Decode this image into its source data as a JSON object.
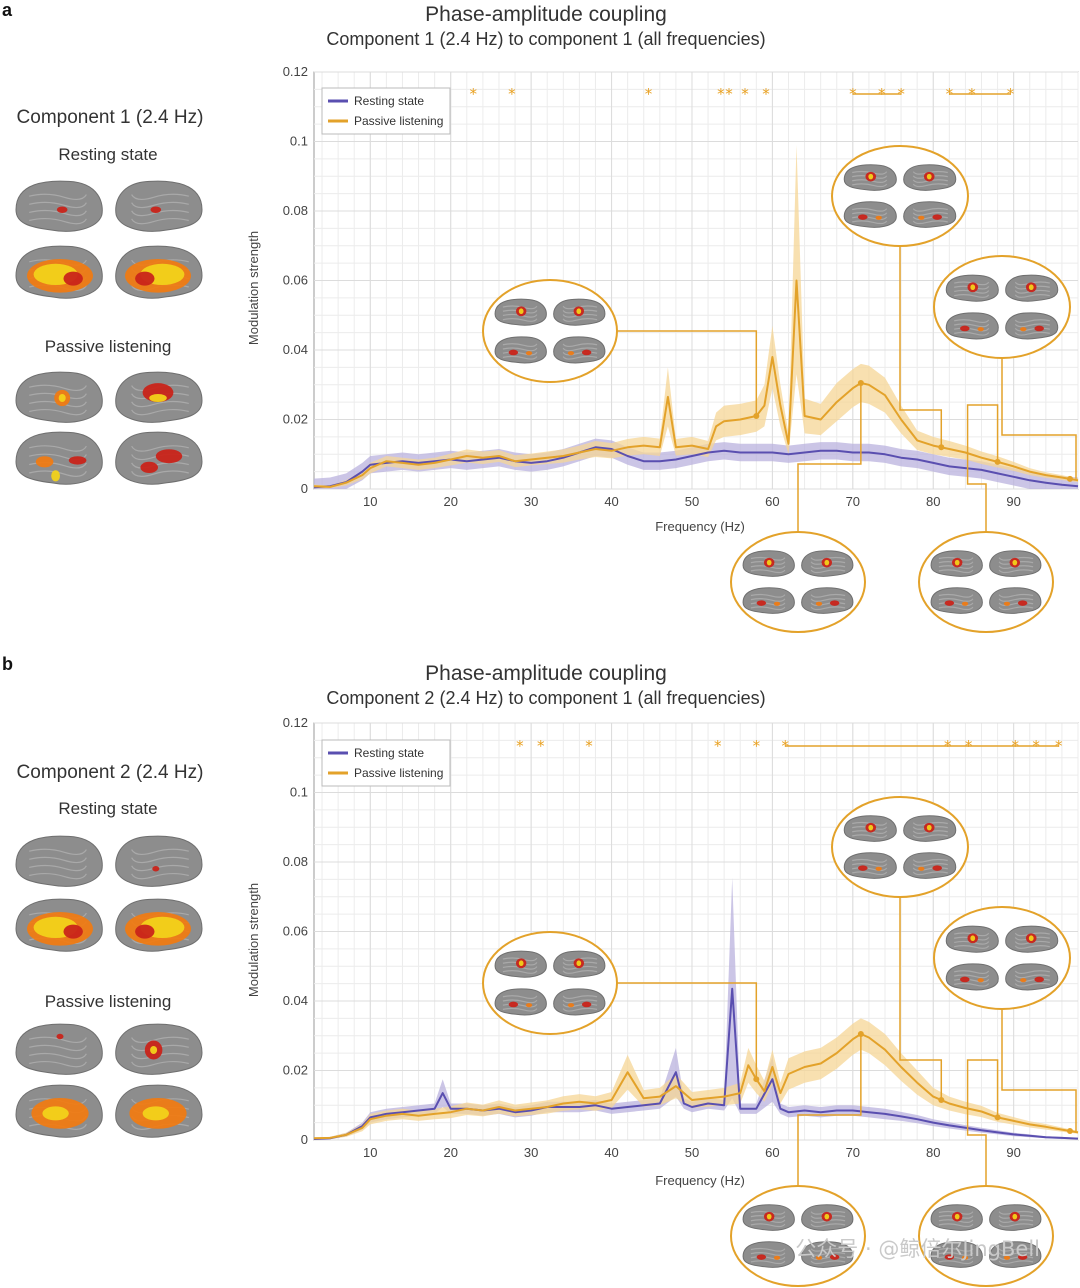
{
  "colors": {
    "resting": "#5a4fb0",
    "resting_band": "#b9b1de",
    "passive": "#e3a22a",
    "passive_band": "#f5d596",
    "activation_hot": "#f2d21a",
    "activation_mid": "#ef7b14",
    "activation_low": "#c9241a",
    "brain_gray": "#8d8d8d"
  },
  "panels": [
    {
      "letter": "a",
      "side": {
        "title": "Component 1 (2.4 Hz)",
        "rest_label": "Resting state",
        "passive_label": "Passive listening"
      }
    },
    {
      "letter": "b",
      "side": {
        "title": "Component 2 (2.4 Hz)",
        "rest_label": "Resting state",
        "passive_label": "Passive listening"
      }
    }
  ],
  "watermark": "公众号 · @鲸倍尔JingBell",
  "chart_data": [
    {
      "type": "line",
      "title": "Phase-amplitude coupling",
      "subtitle": "Component 1 (2.4 Hz) to component 1 (all frequencies)",
      "xlabel": "Frequency (Hz)",
      "ylabel": "Modulation strength",
      "xlim": [
        3,
        98
      ],
      "ylim": [
        0,
        0.12
      ],
      "xticks": [
        10,
        20,
        30,
        40,
        50,
        60,
        70,
        80,
        90
      ],
      "xtick_labels": [
        "10",
        "20",
        "30",
        "40",
        "50",
        "60",
        "70",
        "80",
        "90"
      ],
      "yticks": [
        0,
        0.02,
        0.04,
        0.06,
        0.08,
        0.1,
        0.12
      ],
      "ytick_labels": [
        "0",
        "0.02",
        "0.04",
        "0.06",
        "0.08",
        "0.1",
        "0.12"
      ],
      "grid": true,
      "legend": "top-left",
      "series": [
        {
          "name": "Resting state",
          "x": [
            3,
            5,
            7,
            9,
            10,
            12,
            14,
            16,
            18,
            20,
            22,
            24,
            26,
            28,
            30,
            32,
            34,
            36,
            38,
            40,
            42,
            44,
            46,
            48,
            50,
            52,
            54,
            56,
            58,
            60,
            62,
            64,
            66,
            68,
            70,
            72,
            74,
            76,
            78,
            80,
            82,
            84,
            86,
            88,
            90,
            92,
            94,
            96,
            98
          ],
          "values": [
            0.0005,
            0.0008,
            0.002,
            0.005,
            0.007,
            0.0075,
            0.008,
            0.0075,
            0.008,
            0.0085,
            0.008,
            0.0085,
            0.009,
            0.008,
            0.0075,
            0.008,
            0.009,
            0.0105,
            0.012,
            0.0115,
            0.0095,
            0.008,
            0.008,
            0.0085,
            0.0095,
            0.0105,
            0.011,
            0.0105,
            0.0105,
            0.0105,
            0.01,
            0.0105,
            0.011,
            0.011,
            0.0105,
            0.0105,
            0.01,
            0.009,
            0.0085,
            0.0075,
            0.0065,
            0.006,
            0.0055,
            0.0045,
            0.0035,
            0.0025,
            0.0018,
            0.0012,
            0.0008
          ],
          "band": 0.0025
        },
        {
          "name": "Passive listening",
          "x": [
            3,
            5,
            7,
            9,
            10,
            12,
            14,
            16,
            18,
            20,
            22,
            24,
            26,
            28,
            30,
            32,
            34,
            36,
            38,
            40,
            42,
            44,
            46,
            47,
            48,
            50,
            52,
            53,
            54,
            56,
            58,
            59,
            60,
            61,
            62,
            63,
            64,
            66,
            68,
            70,
            71,
            72,
            74,
            76,
            78,
            80,
            82,
            84,
            86,
            88,
            90,
            92,
            94,
            96,
            98
          ],
          "values": [
            0.0008,
            0.0006,
            0.0018,
            0.004,
            0.006,
            0.008,
            0.0075,
            0.007,
            0.0075,
            0.0085,
            0.0095,
            0.009,
            0.0095,
            0.008,
            0.0085,
            0.009,
            0.0095,
            0.0105,
            0.0115,
            0.011,
            0.012,
            0.0125,
            0.012,
            0.0265,
            0.012,
            0.0125,
            0.0115,
            0.018,
            0.0195,
            0.02,
            0.021,
            0.024,
            0.038,
            0.024,
            0.013,
            0.06,
            0.021,
            0.02,
            0.025,
            0.029,
            0.0305,
            0.03,
            0.027,
            0.02,
            0.014,
            0.0125,
            0.0115,
            0.0105,
            0.009,
            0.0078,
            0.0065,
            0.005,
            0.004,
            0.0033,
            0.0025
          ],
          "band_lower": [
            0.0003,
            0.0002,
            0.001,
            0.0028,
            0.0045,
            0.0065,
            0.006,
            0.0055,
            0.006,
            0.0068,
            0.0076,
            0.0072,
            0.0078,
            0.0063,
            0.0068,
            0.0072,
            0.0076,
            0.0085,
            0.0092,
            0.0088,
            0.0096,
            0.01,
            0.0095,
            0.018,
            0.0096,
            0.01,
            0.0092,
            0.014,
            0.015,
            0.0155,
            0.0165,
            0.018,
            0.029,
            0.018,
            0.01,
            0.033,
            0.016,
            0.0155,
            0.0195,
            0.0235,
            0.025,
            0.0245,
            0.022,
            0.016,
            0.0112,
            0.01,
            0.0092,
            0.0085,
            0.0072,
            0.0062,
            0.0052,
            0.004,
            0.0032,
            0.0026,
            0.002
          ],
          "band_upper": [
            0.0013,
            0.001,
            0.0026,
            0.0052,
            0.0075,
            0.0095,
            0.009,
            0.0085,
            0.009,
            0.0102,
            0.0114,
            0.0108,
            0.0112,
            0.0097,
            0.0102,
            0.0108,
            0.0114,
            0.0125,
            0.0138,
            0.0132,
            0.0144,
            0.015,
            0.0145,
            0.035,
            0.0144,
            0.015,
            0.0138,
            0.022,
            0.024,
            0.0245,
            0.0255,
            0.03,
            0.047,
            0.03,
            0.016,
            0.099,
            0.026,
            0.0245,
            0.0305,
            0.0345,
            0.036,
            0.0355,
            0.032,
            0.024,
            0.0168,
            0.015,
            0.0138,
            0.0125,
            0.0108,
            0.0094,
            0.0078,
            0.006,
            0.0048,
            0.004,
            0.003
          ]
        }
      ],
      "stars": [
        22.8,
        27.6,
        44.6,
        53.6,
        54.6,
        56.6,
        59.2,
        70,
        73.6,
        76,
        82,
        84.8,
        89.6
      ],
      "sig_bars": [
        [
          70,
          76
        ],
        [
          82,
          89.6
        ]
      ],
      "callouts_hz": [
        58,
        71,
        81,
        88,
        97
      ]
    },
    {
      "type": "line",
      "title": "Phase-amplitude coupling",
      "subtitle": "Component 2 (2.4 Hz) to component 1 (all frequencies)",
      "xlabel": "Frequency (Hz)",
      "ylabel": "Modulation strength",
      "xlim": [
        3,
        98
      ],
      "ylim": [
        0,
        0.12
      ],
      "xticks": [
        10,
        20,
        30,
        40,
        50,
        60,
        70,
        80,
        90
      ],
      "xtick_labels": [
        "10",
        "20",
        "30",
        "40",
        "50",
        "60",
        "70",
        "80",
        "90"
      ],
      "yticks": [
        0,
        0.02,
        0.04,
        0.06,
        0.08,
        0.1,
        0.12
      ],
      "ytick_labels": [
        "0",
        "0.02",
        "0.04",
        "0.06",
        "0.08",
        "0.1",
        "0.12"
      ],
      "grid": true,
      "legend": "top-left",
      "series": [
        {
          "name": "Resting state",
          "x": [
            3,
            5,
            7,
            9,
            10,
            12,
            14,
            16,
            18,
            19,
            20,
            22,
            24,
            26,
            28,
            30,
            32,
            34,
            36,
            38,
            40,
            42,
            44,
            46,
            48,
            49,
            50,
            52,
            54,
            55,
            56,
            58,
            60,
            61,
            62,
            64,
            66,
            68,
            70,
            72,
            74,
            76,
            78,
            80,
            82,
            84,
            86,
            88,
            90,
            92,
            94,
            96,
            98
          ],
          "values": [
            0.0003,
            0.0005,
            0.0015,
            0.004,
            0.0065,
            0.0075,
            0.008,
            0.0085,
            0.009,
            0.0135,
            0.009,
            0.009,
            0.0085,
            0.009,
            0.008,
            0.0085,
            0.0095,
            0.0095,
            0.0095,
            0.01,
            0.009,
            0.0095,
            0.01,
            0.0105,
            0.0195,
            0.0105,
            0.0095,
            0.0105,
            0.01,
            0.0435,
            0.009,
            0.009,
            0.0175,
            0.009,
            0.008,
            0.0085,
            0.008,
            0.0085,
            0.0085,
            0.008,
            0.0075,
            0.0068,
            0.006,
            0.005,
            0.0042,
            0.0035,
            0.0028,
            0.0022,
            0.0016,
            0.0012,
            0.0008,
            0.0006,
            0.0004
          ],
          "band_lower": [
            0.0001,
            0.0002,
            0.001,
            0.003,
            0.005,
            0.006,
            0.0065,
            0.007,
            0.0075,
            0.0095,
            0.0075,
            0.0075,
            0.007,
            0.0075,
            0.0065,
            0.007,
            0.008,
            0.008,
            0.008,
            0.0085,
            0.0075,
            0.008,
            0.0085,
            0.009,
            0.0125,
            0.009,
            0.008,
            0.009,
            0.0085,
            0.012,
            0.0075,
            0.0075,
            0.011,
            0.0075,
            0.0065,
            0.007,
            0.0065,
            0.007,
            0.007,
            0.0065,
            0.006,
            0.0055,
            0.0048,
            0.004,
            0.0033,
            0.0027,
            0.0021,
            0.0016,
            0.0011,
            0.0008,
            0.0005,
            0.0003,
            0.0002
          ],
          "band_upper": [
            0.0006,
            0.0009,
            0.0021,
            0.005,
            0.008,
            0.009,
            0.0095,
            0.01,
            0.0105,
            0.0175,
            0.0105,
            0.0105,
            0.01,
            0.0105,
            0.0095,
            0.01,
            0.011,
            0.011,
            0.011,
            0.0115,
            0.0105,
            0.011,
            0.0115,
            0.012,
            0.0265,
            0.012,
            0.011,
            0.012,
            0.0115,
            0.0755,
            0.0105,
            0.0105,
            0.024,
            0.0105,
            0.0095,
            0.01,
            0.0095,
            0.01,
            0.01,
            0.0095,
            0.009,
            0.0081,
            0.0072,
            0.006,
            0.0051,
            0.0043,
            0.0035,
            0.0028,
            0.0021,
            0.0016,
            0.0011,
            0.0009,
            0.0006
          ]
        },
        {
          "name": "Passive listening",
          "x": [
            3,
            5,
            7,
            9,
            10,
            12,
            14,
            16,
            18,
            20,
            22,
            24,
            26,
            28,
            30,
            32,
            34,
            36,
            38,
            40,
            42,
            44,
            46,
            48,
            50,
            52,
            54,
            56,
            57,
            58,
            59,
            60,
            61,
            62,
            64,
            66,
            68,
            70,
            71,
            72,
            74,
            76,
            78,
            80,
            82,
            84,
            86,
            88,
            90,
            92,
            94,
            96,
            98
          ],
          "values": [
            0.0005,
            0.0006,
            0.0015,
            0.0035,
            0.006,
            0.007,
            0.0075,
            0.007,
            0.0075,
            0.008,
            0.009,
            0.0085,
            0.0095,
            0.0085,
            0.009,
            0.0095,
            0.0105,
            0.011,
            0.0105,
            0.0115,
            0.0195,
            0.012,
            0.0125,
            0.0155,
            0.0115,
            0.012,
            0.0125,
            0.0135,
            0.0215,
            0.0175,
            0.014,
            0.021,
            0.0135,
            0.019,
            0.021,
            0.022,
            0.025,
            0.029,
            0.0305,
            0.0295,
            0.026,
            0.021,
            0.0165,
            0.0125,
            0.0105,
            0.0092,
            0.0082,
            0.0065,
            0.0055,
            0.0045,
            0.0038,
            0.003,
            0.0022
          ],
          "band_lower": [
            0.0002,
            0.0003,
            0.0009,
            0.0025,
            0.0045,
            0.0055,
            0.006,
            0.0055,
            0.006,
            0.0063,
            0.0072,
            0.0068,
            0.0076,
            0.0068,
            0.0072,
            0.0076,
            0.0084,
            0.0088,
            0.0084,
            0.0092,
            0.0145,
            0.0096,
            0.01,
            0.012,
            0.0092,
            0.0096,
            0.01,
            0.0105,
            0.0165,
            0.0135,
            0.011,
            0.016,
            0.0105,
            0.0145,
            0.0165,
            0.0175,
            0.0205,
            0.0245,
            0.026,
            0.025,
            0.0215,
            0.017,
            0.013,
            0.01,
            0.0085,
            0.0074,
            0.0066,
            0.0052,
            0.0044,
            0.0036,
            0.003,
            0.0024,
            0.0018
          ],
          "band_upper": [
            0.0008,
            0.0009,
            0.0021,
            0.0045,
            0.0075,
            0.0085,
            0.009,
            0.0085,
            0.009,
            0.0097,
            0.0108,
            0.0102,
            0.0114,
            0.0102,
            0.0108,
            0.0114,
            0.0126,
            0.0132,
            0.0126,
            0.0138,
            0.0245,
            0.0144,
            0.015,
            0.019,
            0.0138,
            0.0144,
            0.015,
            0.0165,
            0.0265,
            0.0215,
            0.017,
            0.026,
            0.0165,
            0.0235,
            0.0255,
            0.0265,
            0.0295,
            0.0335,
            0.035,
            0.034,
            0.0305,
            0.025,
            0.02,
            0.015,
            0.0125,
            0.011,
            0.0098,
            0.0078,
            0.0066,
            0.0054,
            0.0046,
            0.0036,
            0.0026
          ]
        }
      ],
      "stars": [
        28.6,
        31.2,
        37.2,
        53.2,
        58,
        61.6,
        81.8,
        84.4,
        90.2,
        92.8,
        95.6
      ],
      "sig_bars": [
        [
          61.6,
          95.6
        ]
      ],
      "callouts_hz": [
        58,
        71,
        81,
        88,
        97
      ]
    }
  ]
}
